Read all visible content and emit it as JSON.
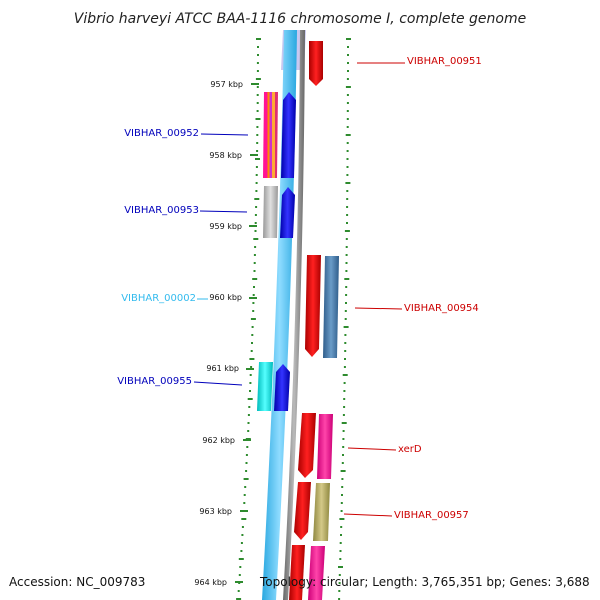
{
  "title": "Vibrio harveyi ATCC BAA-1116 chromosome I, complete genome",
  "accession": "Accession: NC_009783",
  "topology": "Topology: circular; Length: 3,765,351 bp; Genes: 3,688",
  "colors": {
    "label_reverse": "#0000bb",
    "label_forward": "#cc0000",
    "label_rna": "#33bbee",
    "backbone_blue": "#44c4f0",
    "backbone_grey": "#888888",
    "dots": "#2e8b2e"
  },
  "ticks": [
    "957 kbp",
    "958 kbp",
    "959 kbp",
    "960 kbp",
    "961 kbp",
    "962 kbp",
    "963 kbp",
    "964 kbp"
  ],
  "labels": [
    {
      "text": "VIBHAR_00951",
      "side": "right",
      "strand": "forward"
    },
    {
      "text": "VIBHAR_00952",
      "side": "left",
      "strand": "reverse"
    },
    {
      "text": "VIBHAR_00953",
      "side": "left",
      "strand": "reverse"
    },
    {
      "text": "VIBHAR_00002",
      "side": "left",
      "strand": "rna"
    },
    {
      "text": "VIBHAR_00954",
      "side": "right",
      "strand": "forward"
    },
    {
      "text": "VIBHAR_00955",
      "side": "left",
      "strand": "reverse"
    },
    {
      "text": "xerD",
      "side": "right",
      "strand": "forward"
    },
    {
      "text": "VIBHAR_00957",
      "side": "right",
      "strand": "forward"
    }
  ]
}
